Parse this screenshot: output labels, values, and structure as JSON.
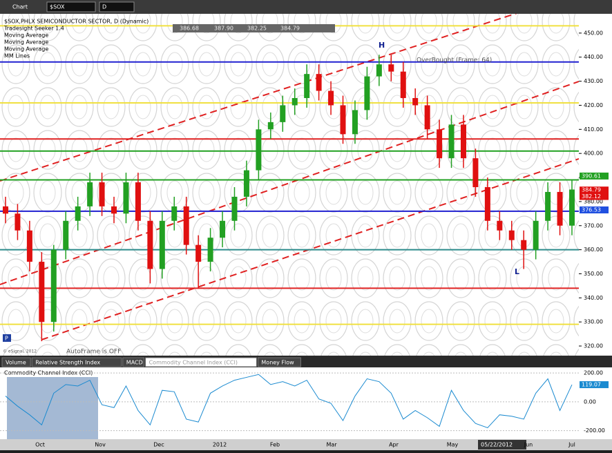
{
  "window": {
    "title": "Chart",
    "symbol": "$SOX",
    "interval": "D"
  },
  "legend": [
    "$SOX,PHLX SEMICONDUCTOR SECTOR, D (Dynamic)",
    "Tradesight Seeker 1.4",
    "Moving Average",
    "Moving Average",
    "Moving Average",
    "MM Lines"
  ],
  "ohlc_box": {
    "open": "386.68",
    "high": "387.90",
    "low": "382.25",
    "close": "384.79"
  },
  "annotations": {
    "high_marker": "H",
    "low_marker": "L",
    "overbought": "OverBought (Frame: 64)",
    "autoframe": "AutoFrame is OFF",
    "copyright": "© eSignal, 2012",
    "p_button": "P"
  },
  "chart_data": {
    "type": "candlestick",
    "open": [
      378,
      375,
      368,
      355,
      330,
      360,
      372,
      378,
      388,
      378,
      375,
      388,
      372,
      352,
      372,
      378,
      362,
      355,
      365,
      372,
      382,
      393,
      410,
      413,
      420,
      423,
      433,
      426,
      420,
      408,
      418,
      432,
      437,
      434,
      423,
      420,
      410,
      398,
      412,
      398,
      386,
      372,
      368,
      364,
      360,
      372,
      384,
      370
    ],
    "high": [
      382,
      379,
      372,
      359,
      362,
      376,
      382,
      392,
      392,
      382,
      392,
      392,
      376,
      376,
      382,
      382,
      366,
      369,
      376,
      386,
      397,
      414,
      417,
      424,
      427,
      437,
      437,
      430,
      424,
      422,
      436,
      441,
      441,
      438,
      427,
      424,
      414,
      416,
      416,
      402,
      390,
      376,
      372,
      368,
      376,
      388,
      388,
      389
    ],
    "low": [
      371,
      364,
      351,
      322,
      326,
      356,
      368,
      374,
      374,
      371,
      371,
      368,
      346,
      348,
      368,
      358,
      344,
      351,
      361,
      368,
      378,
      389,
      406,
      409,
      416,
      419,
      422,
      416,
      404,
      404,
      414,
      428,
      430,
      419,
      416,
      406,
      394,
      394,
      394,
      382,
      368,
      364,
      360,
      352,
      356,
      368,
      366,
      366
    ],
    "close": [
      375,
      368,
      355,
      330,
      360,
      372,
      378,
      388,
      378,
      375,
      388,
      372,
      352,
      372,
      378,
      362,
      355,
      365,
      372,
      382,
      393,
      410,
      413,
      420,
      423,
      433,
      426,
      420,
      408,
      418,
      432,
      437,
      434,
      423,
      420,
      410,
      398,
      412,
      398,
      386,
      372,
      368,
      364,
      360,
      372,
      384,
      370,
      385
    ],
    "up_color": "#22a022",
    "down_color": "#e01010",
    "ylim": [
      316,
      458
    ],
    "yticks": [
      {
        "value": 450,
        "label": "450.00"
      },
      {
        "value": 440,
        "label": "440.00"
      },
      {
        "value": 430,
        "label": "430.00"
      },
      {
        "value": 420,
        "label": "420.00"
      },
      {
        "value": 410,
        "label": "410.00"
      },
      {
        "value": 400,
        "label": "400.00"
      },
      {
        "value": 390,
        "label": "390.00"
      },
      {
        "value": 380,
        "label": "380.00"
      },
      {
        "value": 370,
        "label": "370.00"
      },
      {
        "value": 360,
        "label": "360.00"
      },
      {
        "value": 350,
        "label": "350.00"
      },
      {
        "value": 340,
        "label": "340.00"
      },
      {
        "value": 330,
        "label": "330.00"
      },
      {
        "value": 320,
        "label": "320.00"
      }
    ],
    "levels": [
      {
        "value": 453,
        "color": "#f0e040"
      },
      {
        "value": 438,
        "color": "#2020d0"
      },
      {
        "value": 421,
        "color": "#f0e040"
      },
      {
        "value": 406,
        "color": "#e02020"
      },
      {
        "value": 401,
        "color": "#20a020"
      },
      {
        "value": 389,
        "color": "#20a020"
      },
      {
        "value": 376,
        "color": "#2020d0"
      },
      {
        "value": 360,
        "color": "#2a8a8a"
      },
      {
        "value": 344,
        "color": "#e02020"
      },
      {
        "value": 329,
        "color": "#f0e040"
      }
    ],
    "price_tags": [
      {
        "value": 390.61,
        "label": "390.61",
        "color": "#22a022"
      },
      {
        "value": 384.79,
        "label": "384.79",
        "color": "#e01010"
      },
      {
        "value": 382.12,
        "label": "382.12",
        "color": "#e01010"
      },
      {
        "value": 376.53,
        "label": "376.53",
        "color": "#2050e0"
      }
    ]
  },
  "tabs": [
    "Volume",
    "Relative Strength Index",
    "MACD",
    "Commodity Channel Index (CCI)",
    "Money Flow"
  ],
  "cci": {
    "title": "Commodity Channel Index (CCI)",
    "values": [
      40,
      -30,
      -90,
      -160,
      60,
      120,
      110,
      150,
      -20,
      -40,
      110,
      -60,
      -160,
      80,
      70,
      -120,
      -140,
      60,
      110,
      150,
      170,
      190,
      120,
      140,
      110,
      150,
      20,
      -10,
      -130,
      40,
      160,
      140,
      60,
      -120,
      -60,
      -110,
      -170,
      80,
      -60,
      -150,
      -180,
      -90,
      -100,
      -120,
      60,
      160,
      -60,
      119
    ],
    "ylim": [
      -240,
      220
    ],
    "yticks": [
      {
        "value": 200,
        "label": "200.00"
      },
      {
        "value": 0,
        "label": "0.00"
      },
      {
        "value": -200,
        "label": "-200.00"
      }
    ],
    "tag": {
      "value": 119.07,
      "label": "119.07"
    }
  },
  "x_labels": [
    "Oct",
    "Nov",
    "Dec",
    "2012",
    "Feb",
    "Mar",
    "Apr",
    "May",
    "Jun",
    "Jul"
  ],
  "cursor_date": "05/22/2012"
}
